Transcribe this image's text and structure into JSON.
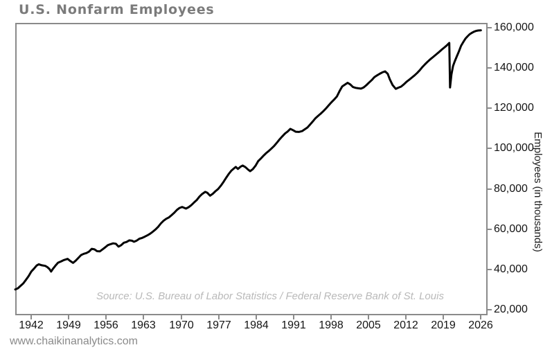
{
  "page": {
    "footer_url": "www.chaikinanalytics.com"
  },
  "chart_data": {
    "type": "line",
    "title": "U.S. Nonfarm Employees",
    "xlabel": "",
    "ylabel": "Employees (in thousands)",
    "source_note": "Source: U.S. Bureau of Labor Statistics / Federal Reserve Bank of St. Louis",
    "grid": false,
    "legend_position": "none",
    "line_color": "#000000",
    "axis_color": "#8a8a8a",
    "xlim": [
      1939,
      2027
    ],
    "ylim": [
      17500,
      162500
    ],
    "x_ticks": [
      1942,
      1949,
      1956,
      1963,
      1970,
      1977,
      1984,
      1991,
      1998,
      2005,
      2012,
      2019,
      2026
    ],
    "x_tick_labels": [
      "1942",
      "1949",
      "1956",
      "1963",
      "1970",
      "1977",
      "1984",
      "1991",
      "1998",
      "2005",
      "2012",
      "2019",
      "2026"
    ],
    "y_ticks": [
      20000,
      40000,
      60000,
      80000,
      100000,
      120000,
      140000,
      160000
    ],
    "y_tick_labels": [
      "20,000",
      "40,000",
      "60,000",
      "80,000",
      "100,000",
      "120,000",
      "140,000",
      "160,000"
    ],
    "series": [
      {
        "name": "U.S. Nonfarm Employees (thousands)",
        "points": [
          [
            1939.0,
            30000
          ],
          [
            1939.5,
            30600
          ],
          [
            1940.0,
            31800
          ],
          [
            1940.5,
            33000
          ],
          [
            1941.0,
            34800
          ],
          [
            1941.5,
            36600
          ],
          [
            1942.0,
            38900
          ],
          [
            1942.5,
            40300
          ],
          [
            1943.0,
            41900
          ],
          [
            1943.4,
            42500
          ],
          [
            1944.0,
            42000
          ],
          [
            1944.6,
            41700
          ],
          [
            1945.0,
            41100
          ],
          [
            1945.4,
            40100
          ],
          [
            1945.7,
            38900
          ],
          [
            1946.0,
            40100
          ],
          [
            1946.5,
            41800
          ],
          [
            1947.0,
            43300
          ],
          [
            1947.6,
            44000
          ],
          [
            1948.0,
            44500
          ],
          [
            1948.8,
            45200
          ],
          [
            1949.3,
            44100
          ],
          [
            1949.8,
            43200
          ],
          [
            1950.3,
            44300
          ],
          [
            1950.8,
            45700
          ],
          [
            1951.3,
            47100
          ],
          [
            1951.8,
            47700
          ],
          [
            1952.3,
            48100
          ],
          [
            1952.8,
            48800
          ],
          [
            1953.3,
            50200
          ],
          [
            1953.8,
            49900
          ],
          [
            1954.3,
            49000
          ],
          [
            1954.8,
            48900
          ],
          [
            1955.3,
            49900
          ],
          [
            1955.8,
            50900
          ],
          [
            1956.3,
            52000
          ],
          [
            1956.8,
            52500
          ],
          [
            1957.3,
            52900
          ],
          [
            1957.8,
            52700
          ],
          [
            1958.3,
            51300
          ],
          [
            1958.8,
            52000
          ],
          [
            1959.3,
            53200
          ],
          [
            1959.8,
            53600
          ],
          [
            1960.3,
            54400
          ],
          [
            1960.8,
            54200
          ],
          [
            1961.2,
            53700
          ],
          [
            1961.7,
            54300
          ],
          [
            1962.2,
            55200
          ],
          [
            1962.7,
            55600
          ],
          [
            1963.2,
            56200
          ],
          [
            1963.7,
            56900
          ],
          [
            1964.2,
            57700
          ],
          [
            1964.7,
            58700
          ],
          [
            1965.2,
            59800
          ],
          [
            1965.7,
            61100
          ],
          [
            1966.2,
            62800
          ],
          [
            1966.7,
            64100
          ],
          [
            1967.2,
            65100
          ],
          [
            1967.7,
            65800
          ],
          [
            1968.2,
            66900
          ],
          [
            1968.7,
            68100
          ],
          [
            1969.2,
            69500
          ],
          [
            1969.7,
            70500
          ],
          [
            1970.2,
            71000
          ],
          [
            1970.9,
            70200
          ],
          [
            1971.4,
            70900
          ],
          [
            1971.9,
            71900
          ],
          [
            1972.4,
            73200
          ],
          [
            1972.9,
            74400
          ],
          [
            1973.4,
            76100
          ],
          [
            1973.9,
            77400
          ],
          [
            1974.5,
            78500
          ],
          [
            1974.9,
            78000
          ],
          [
            1975.4,
            76600
          ],
          [
            1975.9,
            77500
          ],
          [
            1976.4,
            78800
          ],
          [
            1976.9,
            79900
          ],
          [
            1977.4,
            81500
          ],
          [
            1977.9,
            83400
          ],
          [
            1978.4,
            85500
          ],
          [
            1978.9,
            87400
          ],
          [
            1979.4,
            89100
          ],
          [
            1979.9,
            90200
          ],
          [
            1980.2,
            90900
          ],
          [
            1980.6,
            89900
          ],
          [
            1981.1,
            91000
          ],
          [
            1981.5,
            91600
          ],
          [
            1982.0,
            90800
          ],
          [
            1982.5,
            89600
          ],
          [
            1982.9,
            88800
          ],
          [
            1983.4,
            89800
          ],
          [
            1983.9,
            91500
          ],
          [
            1984.4,
            93800
          ],
          [
            1984.9,
            95100
          ],
          [
            1985.4,
            96500
          ],
          [
            1985.9,
            97800
          ],
          [
            1986.4,
            98900
          ],
          [
            1986.9,
            100100
          ],
          [
            1987.4,
            101400
          ],
          [
            1987.9,
            103000
          ],
          [
            1988.4,
            104600
          ],
          [
            1988.9,
            106100
          ],
          [
            1989.4,
            107500
          ],
          [
            1989.9,
            108500
          ],
          [
            1990.4,
            109800
          ],
          [
            1990.9,
            109200
          ],
          [
            1991.4,
            108400
          ],
          [
            1992.0,
            108300
          ],
          [
            1992.6,
            108700
          ],
          [
            1993.1,
            109600
          ],
          [
            1993.6,
            110500
          ],
          [
            1994.1,
            112000
          ],
          [
            1994.6,
            113500
          ],
          [
            1995.1,
            115100
          ],
          [
            1995.6,
            116300
          ],
          [
            1996.1,
            117400
          ],
          [
            1996.6,
            118700
          ],
          [
            1997.1,
            120100
          ],
          [
            1997.6,
            121600
          ],
          [
            1998.1,
            123100
          ],
          [
            1998.6,
            124400
          ],
          [
            1999.1,
            125900
          ],
          [
            1999.6,
            128600
          ],
          [
            2000.1,
            130900
          ],
          [
            2000.6,
            131800
          ],
          [
            2001.1,
            132700
          ],
          [
            2001.6,
            131900
          ],
          [
            2002.1,
            130600
          ],
          [
            2002.6,
            130200
          ],
          [
            2003.1,
            130000
          ],
          [
            2003.6,
            129800
          ],
          [
            2004.1,
            130400
          ],
          [
            2004.6,
            131500
          ],
          [
            2005.1,
            132800
          ],
          [
            2005.6,
            134000
          ],
          [
            2006.1,
            135500
          ],
          [
            2006.6,
            136400
          ],
          [
            2007.1,
            137200
          ],
          [
            2007.6,
            137900
          ],
          [
            2008.1,
            138400
          ],
          [
            2008.6,
            137200
          ],
          [
            2009.0,
            134400
          ],
          [
            2009.5,
            131600
          ],
          [
            2010.1,
            129700
          ],
          [
            2010.6,
            130300
          ],
          [
            2011.1,
            130800
          ],
          [
            2011.6,
            131900
          ],
          [
            2012.1,
            133200
          ],
          [
            2012.6,
            134200
          ],
          [
            2013.1,
            135300
          ],
          [
            2013.6,
            136400
          ],
          [
            2014.1,
            137600
          ],
          [
            2014.6,
            139000
          ],
          [
            2015.1,
            140600
          ],
          [
            2015.6,
            142000
          ],
          [
            2016.1,
            143300
          ],
          [
            2016.6,
            144500
          ],
          [
            2017.1,
            145600
          ],
          [
            2017.6,
            146700
          ],
          [
            2018.1,
            147800
          ],
          [
            2018.6,
            149000
          ],
          [
            2019.1,
            150100
          ],
          [
            2019.6,
            151200
          ],
          [
            2020.1,
            152500
          ],
          [
            2020.25,
            130400
          ],
          [
            2020.5,
            136800
          ],
          [
            2020.8,
            141000
          ],
          [
            2021.1,
            143200
          ],
          [
            2021.5,
            145800
          ],
          [
            2021.9,
            148300
          ],
          [
            2022.3,
            151100
          ],
          [
            2022.7,
            152900
          ],
          [
            2023.1,
            154600
          ],
          [
            2023.5,
            155800
          ],
          [
            2023.9,
            156800
          ],
          [
            2024.3,
            157500
          ],
          [
            2024.7,
            158100
          ],
          [
            2025.1,
            158500
          ],
          [
            2025.5,
            158700
          ],
          [
            2026.0,
            158800
          ]
        ]
      }
    ]
  }
}
